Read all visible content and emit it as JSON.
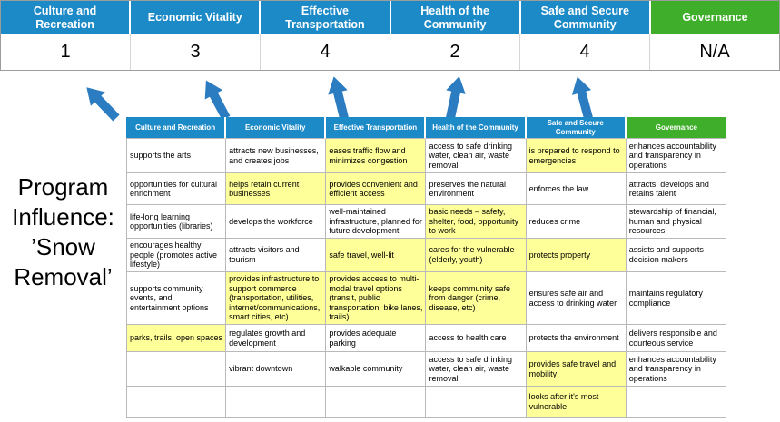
{
  "program_label": "Program Influence: ’Snow Removal’",
  "colors": {
    "header_blue": "#1D8AC8",
    "header_green": "#3FAE2A",
    "highlight_yellow": "#FFFF99",
    "arrow_blue": "#2B7CC0",
    "border_gray": "#B9B9B9"
  },
  "scoreboard": {
    "columns": [
      {
        "label": "Culture and Recreation",
        "score": "1"
      },
      {
        "label": "Economic Vitality",
        "score": "3"
      },
      {
        "label": "Effective Transportation",
        "score": "4"
      },
      {
        "label": "Health of the Community",
        "score": "2"
      },
      {
        "label": "Safe and Secure Community",
        "score": "4"
      },
      {
        "label": "Governance",
        "score": "N/A"
      }
    ]
  },
  "matrix": {
    "headers": [
      "Culture and Recreation",
      "Economic Vitality",
      "Effective Transportation",
      "Health of the Community",
      "Safe and Secure Community",
      "Governance"
    ],
    "rows": [
      [
        {
          "t": "supports the arts",
          "h": false
        },
        {
          "t": "attracts new businesses, and creates jobs",
          "h": false
        },
        {
          "t": "eases traffic flow and minimizes congestion",
          "h": true
        },
        {
          "t": "access to safe drinking water, clean air, waste removal",
          "h": false
        },
        {
          "t": "is prepared to respond to emergencies",
          "h": true
        },
        {
          "t": "enhances accountability and transparency in operations",
          "h": false
        }
      ],
      [
        {
          "t": "opportunities for cultural enrichment",
          "h": false
        },
        {
          "t": "helps retain current businesses",
          "h": true
        },
        {
          "t": "provides convenient and efficient access",
          "h": true
        },
        {
          "t": "preserves the natural environment",
          "h": false
        },
        {
          "t": "enforces the law",
          "h": false
        },
        {
          "t": "attracts, develops and retains talent",
          "h": false
        }
      ],
      [
        {
          "t": "life-long learning opportunities (libraries)",
          "h": false
        },
        {
          "t": "develops the workforce",
          "h": false
        },
        {
          "t": "well-maintained infrastructure, planned for future development",
          "h": false
        },
        {
          "t": "basic needs – safety, shelter, food, opportunity to work",
          "h": true
        },
        {
          "t": "reduces crime",
          "h": false
        },
        {
          "t": "stewardship of financial, human and physical resources",
          "h": false
        }
      ],
      [
        {
          "t": "encourages healthy people (promotes active lifestyle)",
          "h": false
        },
        {
          "t": "attracts visitors and tourism",
          "h": false
        },
        {
          "t": "safe travel, well-lit",
          "h": true
        },
        {
          "t": "cares for the vulnerable (elderly, youth)",
          "h": true
        },
        {
          "t": "protects property",
          "h": true
        },
        {
          "t": "assists and supports decision makers",
          "h": false
        }
      ],
      [
        {
          "t": "supports community events, and entertainment options",
          "h": false
        },
        {
          "t": "provides infrastructure to support commerce (transportation, utilities, internet/communications, smart cities, etc)",
          "h": true
        },
        {
          "t": "provides access to multi-modal travel options (transit, public transportation, bike lanes, trails)",
          "h": true
        },
        {
          "t": "keeps community safe from danger (crime, disease, etc)",
          "h": true
        },
        {
          "t": "ensures safe air and access to drinking water",
          "h": false
        },
        {
          "t": "maintains regulatory compliance",
          "h": false
        }
      ],
      [
        {
          "t": "parks, trails, open spaces",
          "h": true
        },
        {
          "t": "regulates growth and development",
          "h": false
        },
        {
          "t": "provides adequate parking",
          "h": false
        },
        {
          "t": "access to health care",
          "h": false
        },
        {
          "t": "protects the environment",
          "h": false
        },
        {
          "t": "delivers responsible and courteous service",
          "h": false
        }
      ],
      [
        {
          "t": "",
          "h": false
        },
        {
          "t": "vibrant downtown",
          "h": false
        },
        {
          "t": "walkable community",
          "h": false
        },
        {
          "t": "access to safe drinking water, clean air, waste removal",
          "h": false
        },
        {
          "t": "provides safe travel and mobility",
          "h": true
        },
        {
          "t": "enhances accountability and transparency in operations",
          "h": false
        }
      ],
      [
        {
          "t": "",
          "h": false
        },
        {
          "t": "",
          "h": false
        },
        {
          "t": "",
          "h": false
        },
        {
          "t": "",
          "h": false
        },
        {
          "t": "looks after it's most vulnerable",
          "h": true
        },
        {
          "t": "",
          "h": false
        }
      ]
    ]
  }
}
